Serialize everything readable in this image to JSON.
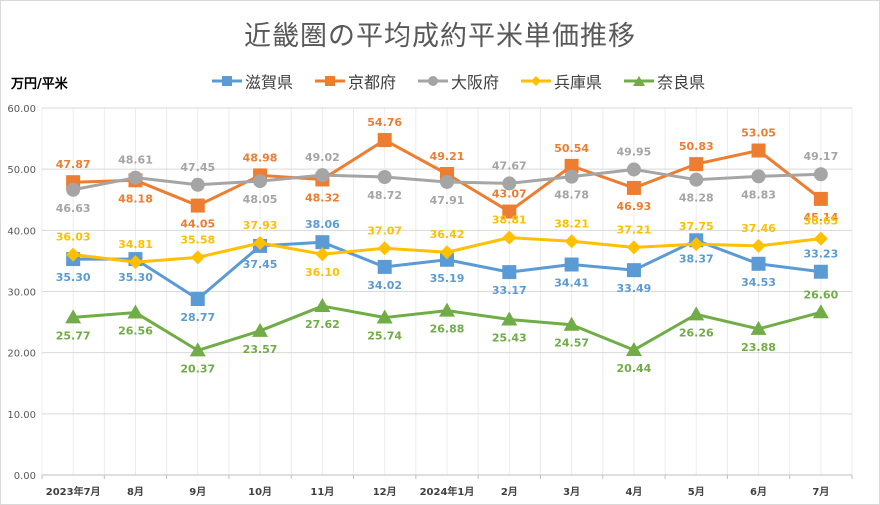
{
  "chart_data": {
    "type": "line",
    "title": "近畿圏の平均成約平米単価推移",
    "ylabel": "万円/平米",
    "xlabel": "",
    "ylim": [
      0,
      60
    ],
    "yticks": [
      "0.00",
      "10.00",
      "20.00",
      "30.00",
      "40.00",
      "50.00",
      "60.00"
    ],
    "grid": true,
    "legend_position": "top",
    "categories": [
      "2023年7月",
      "8月",
      "9月",
      "10月",
      "11月",
      "12月",
      "2024年1月",
      "2月",
      "3月",
      "4月",
      "5月",
      "6月",
      "7月"
    ],
    "series": [
      {
        "name": "滋賀県",
        "color": "#5b9bd5",
        "marker": "square",
        "values": [
          35.3,
          35.3,
          28.77,
          37.45,
          38.06,
          34.02,
          35.19,
          33.17,
          34.41,
          33.49,
          38.37,
          34.53,
          33.23
        ]
      },
      {
        "name": "京都府",
        "color": "#ed7d31",
        "marker": "square",
        "values": [
          47.87,
          48.18,
          44.05,
          48.98,
          48.32,
          54.76,
          49.21,
          43.07,
          50.54,
          46.93,
          50.83,
          53.05,
          45.14
        ]
      },
      {
        "name": "大阪府",
        "color": "#a5a5a5",
        "marker": "circle",
        "values": [
          46.63,
          48.61,
          47.45,
          48.05,
          49.02,
          48.72,
          47.91,
          47.67,
          48.78,
          49.95,
          48.28,
          48.83,
          49.17
        ]
      },
      {
        "name": "兵庫県",
        "color": "#ffc000",
        "marker": "diamond",
        "values": [
          36.03,
          34.81,
          35.58,
          37.93,
          36.1,
          37.07,
          36.42,
          38.81,
          38.21,
          37.21,
          37.75,
          37.46,
          38.65
        ]
      },
      {
        "name": "奈良県",
        "color": "#70ad47",
        "marker": "triangle",
        "values": [
          25.77,
          26.56,
          20.37,
          23.57,
          27.62,
          25.74,
          26.88,
          25.43,
          24.57,
          20.44,
          26.26,
          23.88,
          26.6
        ]
      }
    ]
  }
}
